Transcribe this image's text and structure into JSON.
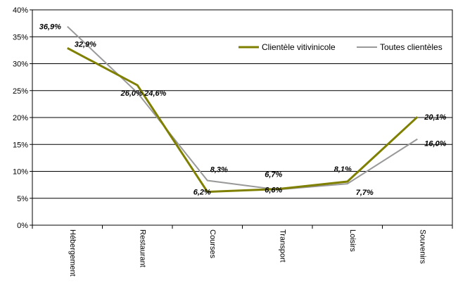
{
  "chart_data": {
    "type": "line",
    "categories": [
      "Hébergement",
      "Restaurant",
      "Courses",
      "Transport",
      "Loisirs",
      "Souvenirs"
    ],
    "series": [
      {
        "name": "Clientèle vitivinicole",
        "values": [
          32.9,
          26.0,
          6.2,
          6.7,
          8.1,
          20.1
        ],
        "labels": [
          "32,9%",
          "26,0%",
          "6,2%",
          "6,7%",
          "8,1%",
          "20,1%"
        ],
        "color": "#7f7f00"
      },
      {
        "name": "Toutes clientèles",
        "values": [
          36.9,
          24.6,
          8.3,
          6.6,
          7.7,
          16.0
        ],
        "labels": [
          "36,9%",
          "24,6%",
          "8,3%",
          "6,6%",
          "7,7%",
          "16,0%"
        ],
        "color": "#999999"
      }
    ],
    "ylim": [
      0,
      40
    ],
    "yticks": [
      "0%",
      "5%",
      "10%",
      "15%",
      "20%",
      "25%",
      "30%",
      "35%",
      "40%"
    ],
    "grid": true,
    "legend": "top-right"
  }
}
